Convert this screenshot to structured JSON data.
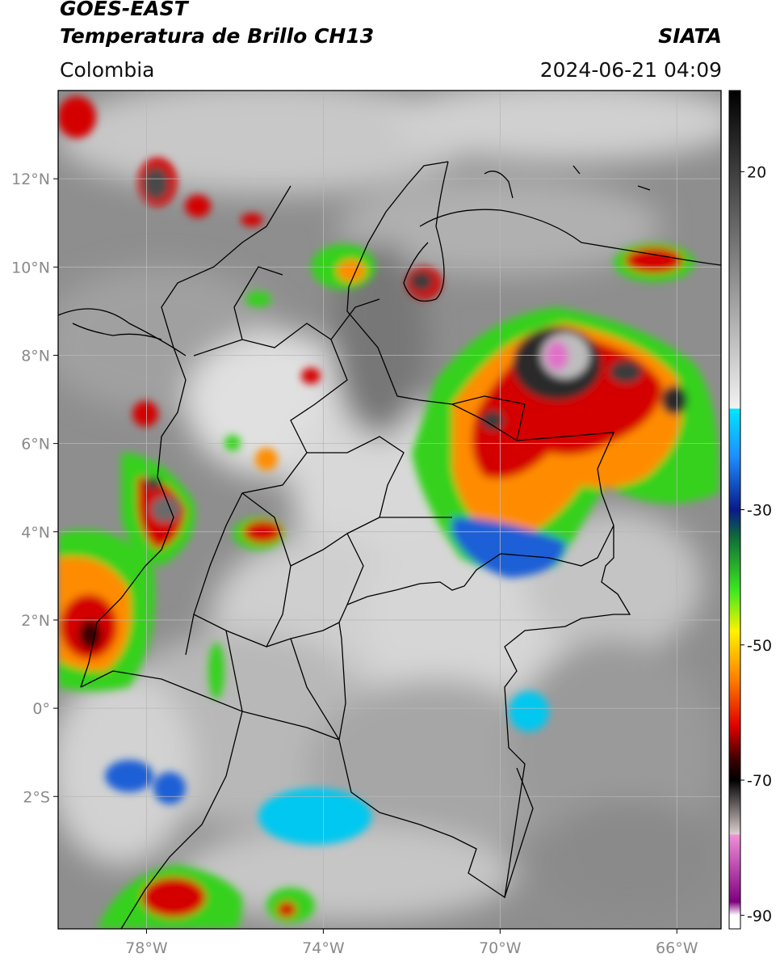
{
  "header": {
    "satellite": "GOES-EAST",
    "product": "Temperatura de Brillo CH13",
    "region": "Colombia",
    "organization": "SIATA",
    "timestamp": "2024-06-21 04:09"
  },
  "map": {
    "lon_range": [
      -80,
      -65
    ],
    "lat_range": [
      -5,
      14
    ],
    "lat_ticks": [
      {
        "value": 12,
        "label": "12°N"
      },
      {
        "value": 10,
        "label": "10°N"
      },
      {
        "value": 8,
        "label": "8°N"
      },
      {
        "value": 6,
        "label": "6°N"
      },
      {
        "value": 4,
        "label": "4°N"
      },
      {
        "value": 2,
        "label": "2°N"
      },
      {
        "value": 0,
        "label": "0°"
      },
      {
        "value": -2,
        "label": "2°S"
      }
    ],
    "lon_ticks": [
      {
        "value": -78,
        "label": "78°W"
      },
      {
        "value": -74,
        "label": "74°W"
      },
      {
        "value": -70,
        "label": "70°W"
      },
      {
        "value": -66,
        "label": "66°W"
      }
    ],
    "grid": true
  },
  "colorbar": {
    "range": [
      -92,
      32
    ],
    "ticks": [
      {
        "value": 20,
        "label": "20"
      },
      {
        "value": -30,
        "label": "-30"
      },
      {
        "value": -50,
        "label": "-50"
      },
      {
        "value": -70,
        "label": "-70"
      },
      {
        "value": -90,
        "label": "-90"
      }
    ],
    "stops": [
      {
        "value": 32,
        "color": "#000000"
      },
      {
        "value": -15,
        "color": "#f2f2f2"
      },
      {
        "value": -15.1,
        "color": "#00e5ff"
      },
      {
        "value": -22,
        "color": "#1e90ff"
      },
      {
        "value": -30,
        "color": "#0a1a8a"
      },
      {
        "value": -34,
        "color": "#0e6b3a"
      },
      {
        "value": -42,
        "color": "#3ee820"
      },
      {
        "value": -48,
        "color": "#fff200"
      },
      {
        "value": -55,
        "color": "#ff8000"
      },
      {
        "value": -62,
        "color": "#e00000"
      },
      {
        "value": -67,
        "color": "#3a0000"
      },
      {
        "value": -70,
        "color": "#000000"
      },
      {
        "value": -78,
        "color": "#dcd0d0"
      },
      {
        "value": -78.1,
        "color": "#f090d8"
      },
      {
        "value": -88,
        "color": "#800080"
      },
      {
        "value": -90,
        "color": "#ffffff"
      }
    ]
  },
  "storm_colors": {
    "cold_top": "#2a2a2a",
    "deep": "#d40000",
    "mid": "#ff8c00",
    "warm": "#35d11a",
    "edge": "#1a5fd6",
    "cyan": "#00c8f0",
    "overshoot": "#e070c8"
  }
}
